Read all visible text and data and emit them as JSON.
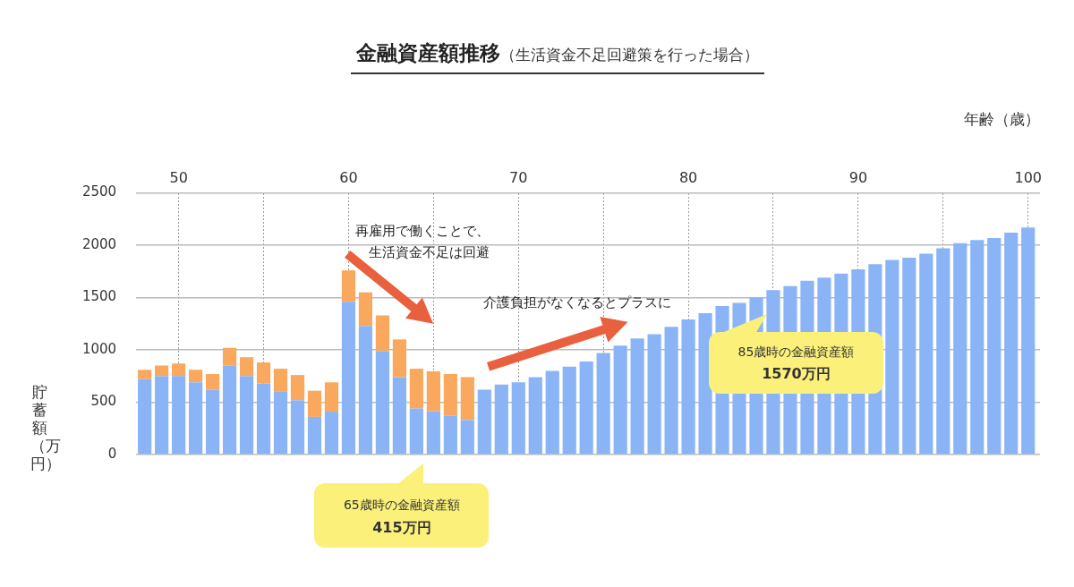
{
  "chart_data": {
    "type": "bar",
    "title": "金融資産額推移",
    "subtitle": "（生活資金不足回避策を行った場合）",
    "xlabel": "年齢（歳）",
    "ylabel": "貯蓄額（万円）",
    "x": [
      48,
      49,
      50,
      51,
      52,
      53,
      54,
      55,
      56,
      57,
      58,
      59,
      60,
      61,
      62,
      63,
      64,
      65,
      66,
      67,
      68,
      69,
      70,
      71,
      72,
      73,
      74,
      75,
      76,
      77,
      78,
      79,
      80,
      81,
      82,
      83,
      84,
      85,
      86,
      87,
      88,
      89,
      90,
      91,
      92,
      93,
      94,
      95,
      96,
      97,
      98,
      99,
      100
    ],
    "stacked": true,
    "series": [
      {
        "color": "#8ab4f6",
        "values": [
          720,
          750,
          750,
          690,
          620,
          850,
          750,
          680,
          600,
          520,
          360,
          410,
          1460,
          1230,
          990,
          740,
          440,
          415,
          370,
          330,
          620,
          670,
          690,
          740,
          800,
          840,
          890,
          970,
          1040,
          1110,
          1150,
          1220,
          1290,
          1350,
          1420,
          1450,
          1500,
          1570,
          1610,
          1660,
          1690,
          1730,
          1770,
          1820,
          1860,
          1880,
          1920,
          1970,
          2020,
          2050,
          2070,
          2120,
          2170
        ]
      },
      {
        "color": "#f9a85d",
        "values": [
          90,
          100,
          120,
          120,
          150,
          170,
          180,
          200,
          220,
          240,
          250,
          280,
          300,
          320,
          340,
          360,
          380,
          380,
          400,
          410,
          null,
          null,
          null,
          null,
          null,
          null,
          null,
          null,
          null,
          null,
          null,
          null,
          null,
          null,
          null,
          null,
          null,
          null,
          null,
          null,
          null,
          null,
          null,
          null,
          null,
          null,
          null,
          null,
          null,
          null,
          null,
          null,
          null
        ]
      }
    ],
    "xlim": [
      47.5,
      100.7
    ],
    "xticks": [
      50,
      {
        "value": 55,
        "label": null
      },
      60,
      {
        "value": 65,
        "label": null
      },
      70,
      {
        "value": 75,
        "label": null
      },
      80,
      {
        "value": 85,
        "label": null
      },
      90,
      {
        "value": 95,
        "label": null
      },
      100
    ],
    "ylim": [
      0,
      2500
    ],
    "yticks": [
      0,
      500,
      1000,
      1500,
      2000,
      2500
    ],
    "grid": true,
    "legend": false,
    "annotations": [
      "再雇用で働くことで、生活資金不足は回避",
      "介護負担がなくなるとプラスに",
      "65歳時の金融資産額",
      "415万円",
      "85歳時の金融資産額",
      "1570万円"
    ]
  }
}
